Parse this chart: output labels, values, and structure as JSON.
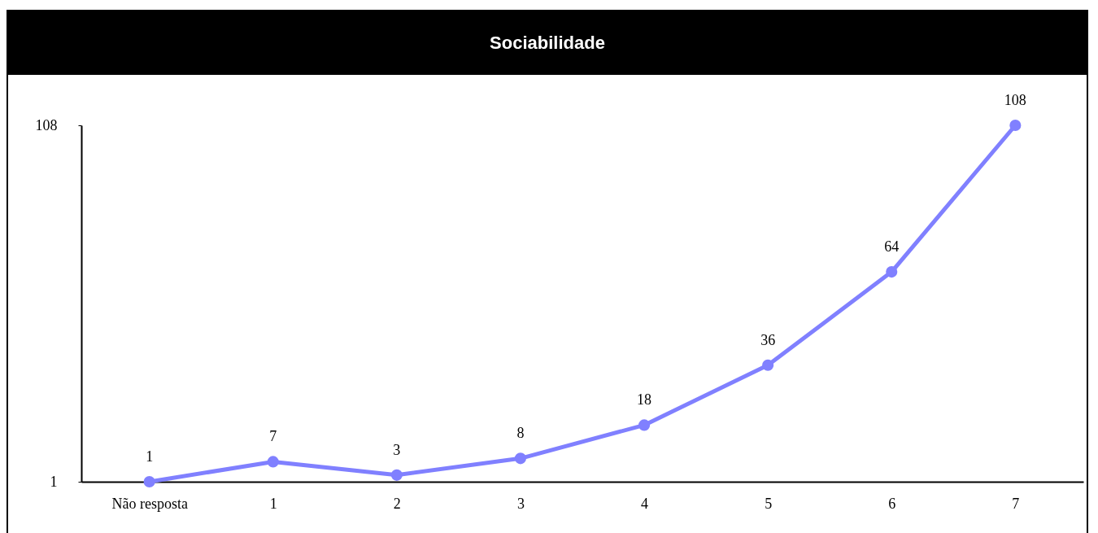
{
  "chart_data": {
    "type": "line",
    "title": "Sociabilidade",
    "categories": [
      "Não resposta",
      "1",
      "2",
      "3",
      "4",
      "5",
      "6",
      "7"
    ],
    "series": [
      {
        "color": "#8080ff",
        "values": [
          1,
          7,
          3,
          8,
          18,
          36,
          64,
          108
        ]
      }
    ],
    "ylim": [
      1,
      108
    ],
    "yticks": [
      1,
      108
    ],
    "marker": "circle",
    "data_labels": true
  }
}
